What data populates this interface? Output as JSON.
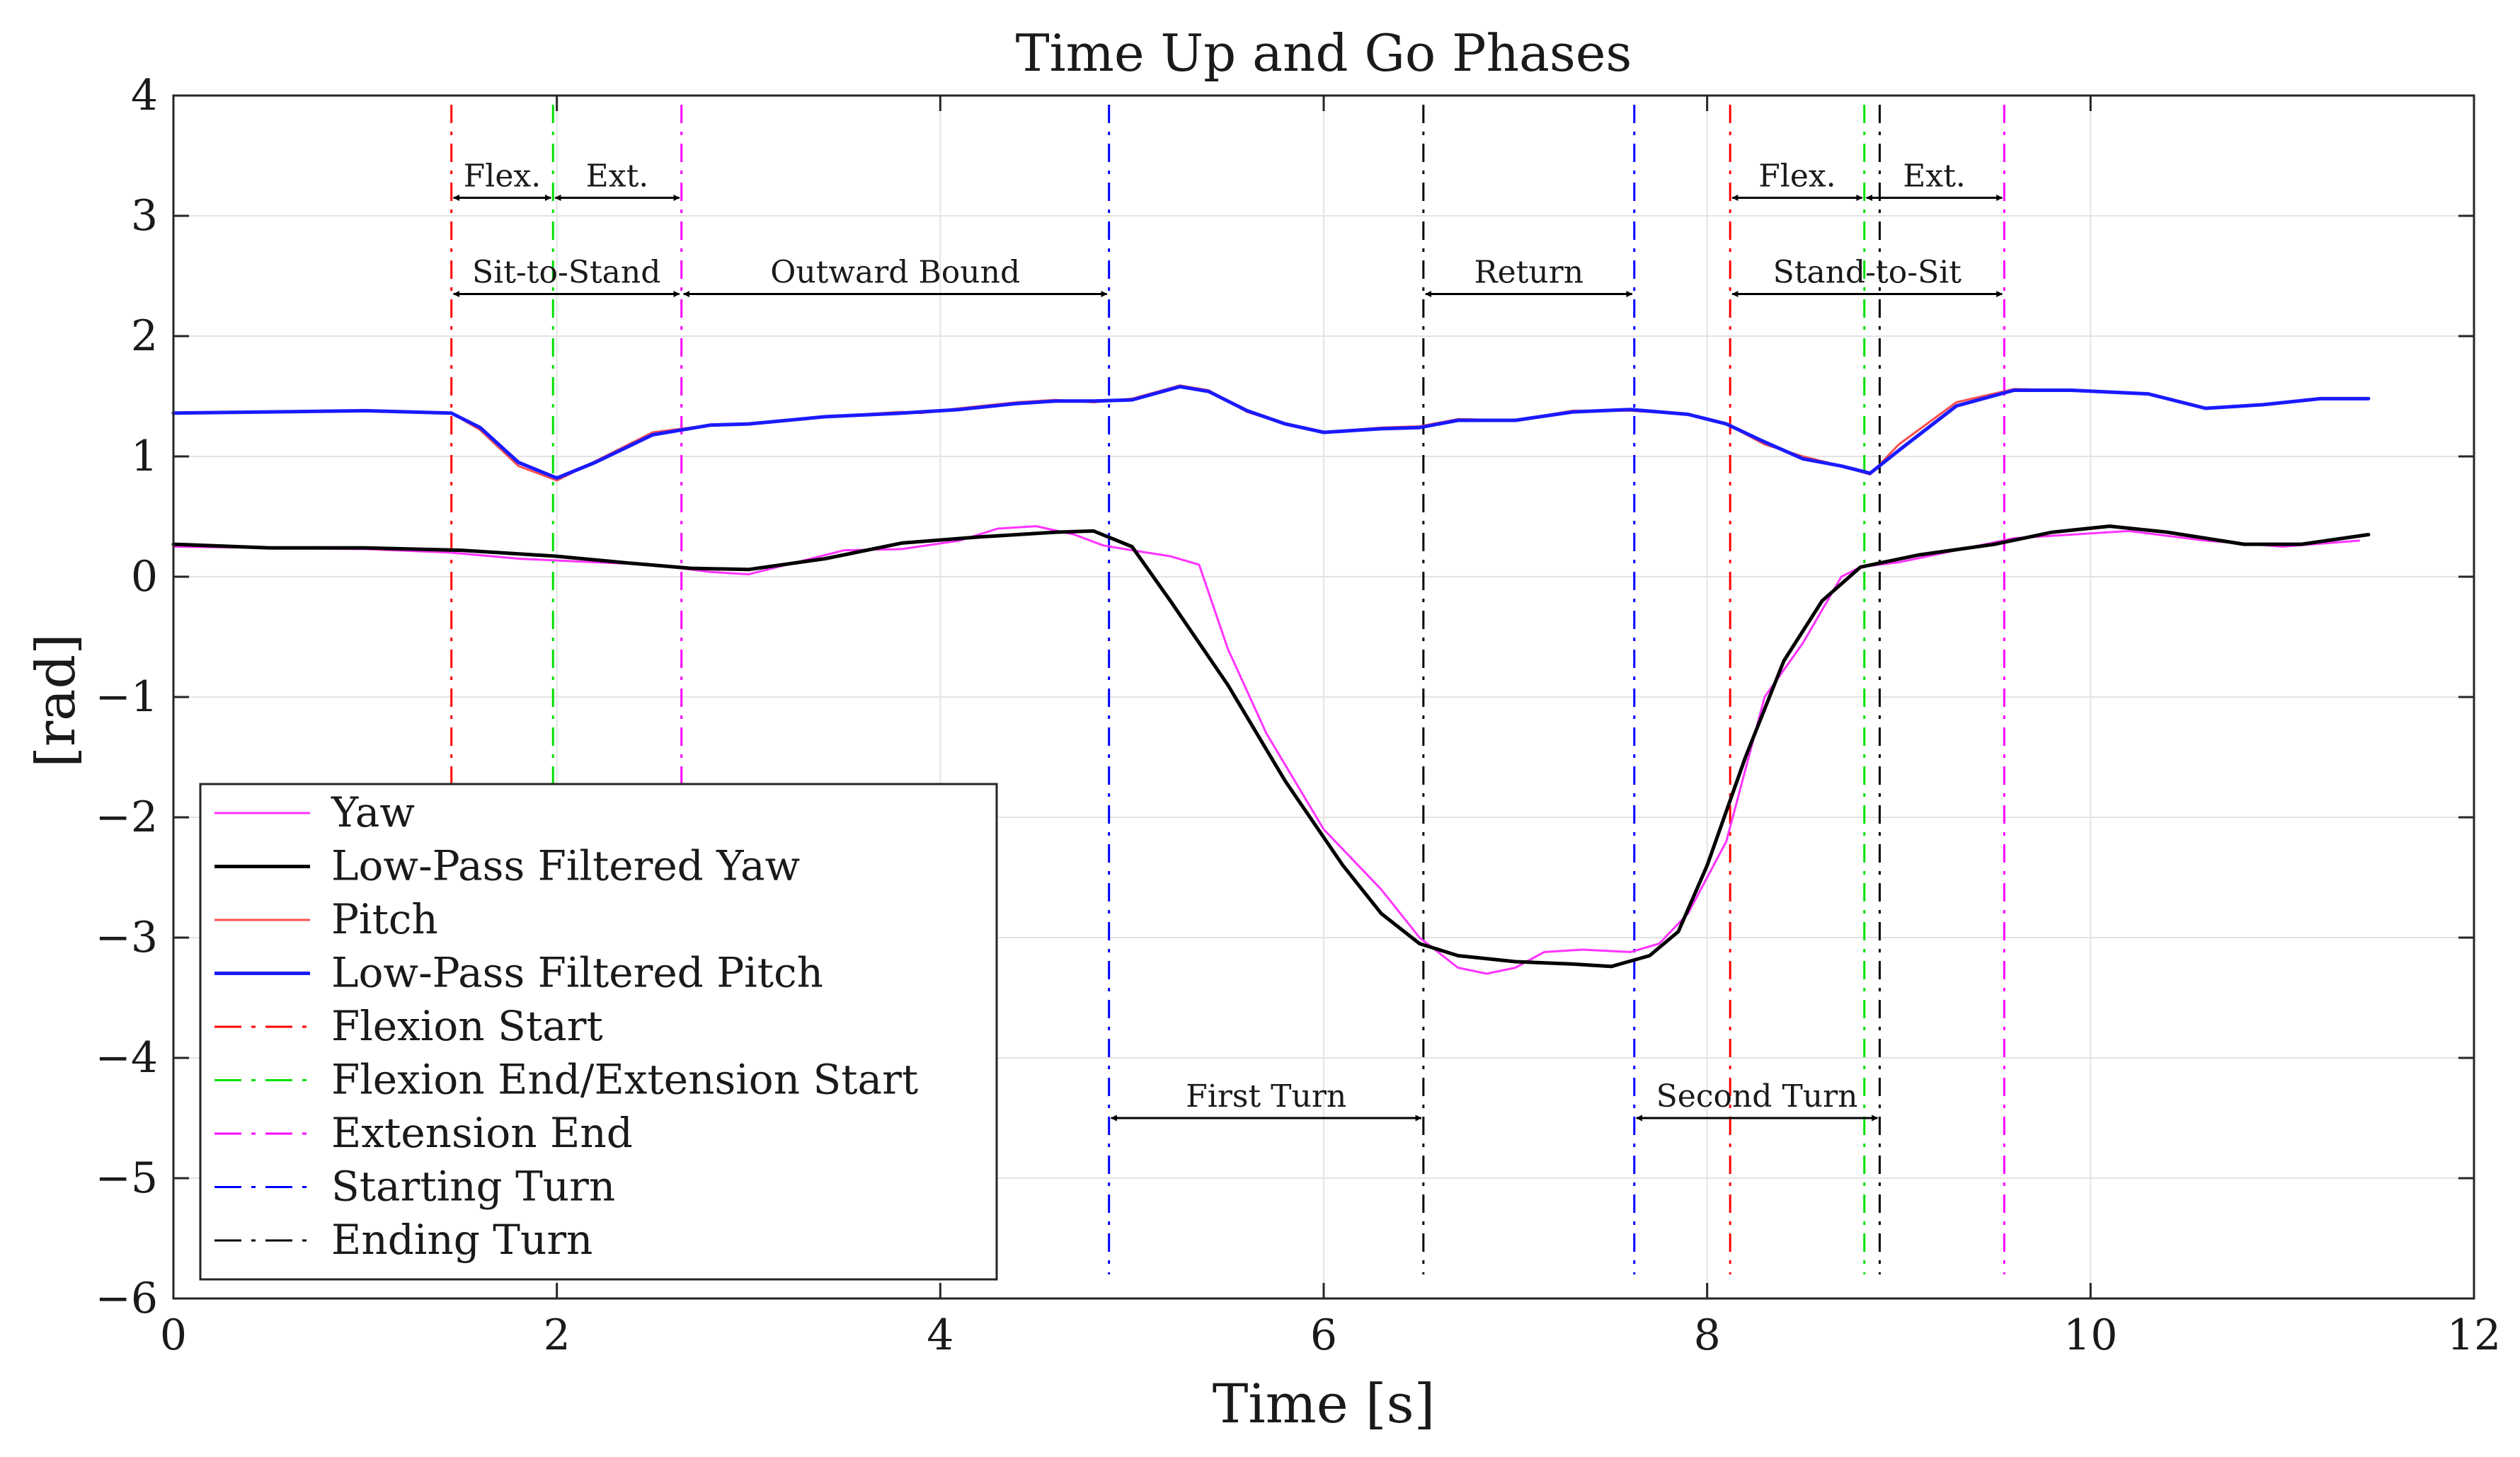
{
  "chart_data": {
    "type": "line",
    "title": "Time Up and Go Phases",
    "xlabel": "Time [s]",
    "ylabel": "[rad]",
    "xlim": [
      0,
      12
    ],
    "ylim": [
      -6,
      4
    ],
    "xticks": [
      0,
      2,
      4,
      6,
      8,
      10,
      12
    ],
    "yticks": [
      4,
      3,
      2,
      1,
      0,
      -1,
      -2,
      -3,
      -4,
      -5,
      -6
    ],
    "xtick_labels": [
      "0",
      "2",
      "4",
      "6",
      "8",
      "10",
      "12"
    ],
    "ytick_labels": [
      "4",
      "3",
      "2",
      "1",
      "0",
      "−1",
      "−2",
      "−3",
      "−4",
      "−5",
      "−6"
    ],
    "grid": true,
    "legend_position": "bottom-left",
    "series": [
      {
        "name": "Yaw",
        "color": "#ff33ff",
        "style": "solid",
        "x": [
          0,
          0.5,
          1.0,
          1.45,
          1.8,
          2.2,
          2.5,
          2.8,
          3.0,
          3.2,
          3.5,
          3.8,
          4.1,
          4.3,
          4.5,
          4.7,
          4.85,
          5.0,
          5.2,
          5.35,
          5.5,
          5.7,
          6.0,
          6.3,
          6.5,
          6.7,
          6.85,
          7.0,
          7.15,
          7.35,
          7.6,
          7.75,
          7.9,
          8.1,
          8.3,
          8.5,
          8.7,
          8.8,
          9.0,
          9.3,
          9.6,
          9.9,
          10.2,
          10.6,
          11.0,
          11.4
        ],
        "y": [
          0.25,
          0.24,
          0.23,
          0.2,
          0.15,
          0.12,
          0.1,
          0.04,
          0.02,
          0.1,
          0.22,
          0.23,
          0.3,
          0.4,
          0.42,
          0.35,
          0.26,
          0.22,
          0.17,
          0.1,
          -0.6,
          -1.3,
          -2.1,
          -2.6,
          -3.0,
          -3.25,
          -3.3,
          -3.25,
          -3.12,
          -3.1,
          -3.12,
          -3.05,
          -2.8,
          -2.2,
          -1.0,
          -0.55,
          0.0,
          0.08,
          0.12,
          0.22,
          0.32,
          0.35,
          0.38,
          0.3,
          0.25,
          0.3
        ]
      },
      {
        "name": "Low-Pass Filtered Yaw",
        "color": "#000000",
        "style": "solid",
        "x": [
          0,
          0.5,
          1.0,
          1.5,
          2.0,
          2.4,
          2.7,
          3.0,
          3.4,
          3.8,
          4.2,
          4.6,
          4.8,
          5.0,
          5.2,
          5.5,
          5.8,
          6.1,
          6.3,
          6.5,
          6.7,
          7.0,
          7.3,
          7.5,
          7.7,
          7.85,
          8.0,
          8.2,
          8.4,
          8.6,
          8.8,
          9.1,
          9.5,
          9.8,
          10.1,
          10.4,
          10.8,
          11.1,
          11.45
        ],
        "y": [
          0.27,
          0.24,
          0.24,
          0.22,
          0.17,
          0.11,
          0.07,
          0.06,
          0.15,
          0.28,
          0.33,
          0.37,
          0.38,
          0.25,
          -0.2,
          -0.9,
          -1.7,
          -2.4,
          -2.8,
          -3.05,
          -3.15,
          -3.2,
          -3.22,
          -3.24,
          -3.15,
          -2.95,
          -2.4,
          -1.5,
          -0.7,
          -0.2,
          0.08,
          0.18,
          0.27,
          0.37,
          0.42,
          0.37,
          0.27,
          0.27,
          0.35
        ]
      },
      {
        "name": "Pitch",
        "color": "#ff4d4d",
        "style": "solid",
        "x": [
          0,
          0.5,
          1.0,
          1.45,
          1.6,
          1.8,
          2.0,
          2.2,
          2.5,
          2.8,
          3.0,
          3.4,
          3.8,
          3.9,
          4.1,
          4.4,
          4.6,
          4.8,
          5.0,
          5.25,
          5.4,
          5.6,
          5.8,
          6.0,
          6.3,
          6.5,
          6.7,
          7.0,
          7.3,
          7.6,
          7.9,
          8.1,
          8.3,
          8.5,
          8.7,
          8.85,
          9.0,
          9.3,
          9.6,
          9.9,
          10.3,
          10.6,
          10.9,
          11.2,
          11.45
        ],
        "y": [
          1.36,
          1.37,
          1.38,
          1.36,
          1.22,
          0.92,
          0.8,
          0.96,
          1.2,
          1.26,
          1.27,
          1.33,
          1.37,
          1.36,
          1.4,
          1.45,
          1.47,
          1.45,
          1.48,
          1.59,
          1.55,
          1.37,
          1.27,
          1.2,
          1.24,
          1.25,
          1.31,
          1.3,
          1.38,
          1.38,
          1.35,
          1.27,
          1.1,
          1.0,
          0.92,
          0.85,
          1.1,
          1.45,
          1.56,
          1.55,
          1.52,
          1.4,
          1.43,
          1.48,
          1.48
        ]
      },
      {
        "name": "Low-Pass Filtered Pitch",
        "color": "#1a1aff",
        "style": "solid",
        "x": [
          0,
          0.5,
          1.0,
          1.45,
          1.6,
          1.8,
          2.0,
          2.2,
          2.5,
          2.8,
          3.0,
          3.4,
          3.8,
          4.1,
          4.4,
          4.6,
          4.8,
          5.0,
          5.25,
          5.4,
          5.6,
          5.8,
          6.0,
          6.3,
          6.5,
          6.7,
          7.0,
          7.3,
          7.6,
          7.9,
          8.1,
          8.3,
          8.5,
          8.7,
          8.85,
          9.0,
          9.3,
          9.6,
          9.9,
          10.3,
          10.6,
          10.9,
          11.2,
          11.45
        ],
        "y": [
          1.36,
          1.37,
          1.38,
          1.36,
          1.24,
          0.95,
          0.82,
          0.95,
          1.18,
          1.26,
          1.27,
          1.33,
          1.36,
          1.39,
          1.44,
          1.46,
          1.46,
          1.47,
          1.58,
          1.54,
          1.38,
          1.27,
          1.2,
          1.23,
          1.24,
          1.3,
          1.3,
          1.37,
          1.39,
          1.35,
          1.27,
          1.12,
          0.98,
          0.92,
          0.86,
          1.05,
          1.42,
          1.55,
          1.55,
          1.52,
          1.4,
          1.43,
          1.48,
          1.48
        ]
      }
    ],
    "event_lines": [
      {
        "name": "Flexion Start",
        "color": "#ff0000",
        "x": [
          1.45,
          8.12
        ]
      },
      {
        "name": "Flexion End/Extension Start",
        "color": "#00e000",
        "x": [
          1.98,
          8.82
        ]
      },
      {
        "name": "Extension End",
        "color": "#ff00ff",
        "x": [
          2.65,
          9.55
        ]
      },
      {
        "name": "Starting Turn",
        "color": "#0000ff",
        "x": [
          4.88,
          7.62
        ]
      },
      {
        "name": "Ending Turn",
        "color": "#000000",
        "x": [
          6.52,
          8.9
        ]
      }
    ],
    "annotations": [
      {
        "label": "Flex.",
        "x_start": 1.45,
        "x_end": 1.98,
        "y": 3.15
      },
      {
        "label": "Ext.",
        "x_start": 1.98,
        "x_end": 2.65,
        "y": 3.15
      },
      {
        "label": "Sit-to-Stand",
        "x_start": 1.45,
        "x_end": 2.65,
        "y": 2.35
      },
      {
        "label": "Outward Bound",
        "x_start": 2.65,
        "x_end": 4.88,
        "y": 2.35
      },
      {
        "label": "Return",
        "x_start": 6.52,
        "x_end": 7.62,
        "y": 2.35
      },
      {
        "label": "Flex.",
        "x_start": 8.12,
        "x_end": 8.82,
        "y": 3.15
      },
      {
        "label": "Ext.",
        "x_start": 8.82,
        "x_end": 9.55,
        "y": 3.15
      },
      {
        "label": "Stand-to-Sit",
        "x_start": 8.12,
        "x_end": 9.55,
        "y": 2.35
      },
      {
        "label": "First Turn",
        "x_start": 4.88,
        "x_end": 6.52,
        "y": -4.5
      },
      {
        "label": "Second Turn",
        "x_start": 7.62,
        "x_end": 8.9,
        "y": -4.5
      }
    ],
    "legend": [
      {
        "label": "Yaw",
        "color": "#ff33ff",
        "style": "solid"
      },
      {
        "label": "Low-Pass Filtered Yaw",
        "color": "#000000",
        "style": "solid"
      },
      {
        "label": "Pitch",
        "color": "#ff4d4d",
        "style": "solid"
      },
      {
        "label": "Low-Pass Filtered Pitch",
        "color": "#1a1aff",
        "style": "solid"
      },
      {
        "label": "Flexion Start",
        "color": "#ff0000",
        "style": "dashdot"
      },
      {
        "label": "Flexion End/Extension Start",
        "color": "#00e000",
        "style": "dashdot"
      },
      {
        "label": "Extension End",
        "color": "#ff00ff",
        "style": "dashdot"
      },
      {
        "label": "Starting Turn",
        "color": "#0000ff",
        "style": "dashdot"
      },
      {
        "label": "Ending Turn",
        "color": "#000000",
        "style": "dashdot"
      }
    ]
  }
}
